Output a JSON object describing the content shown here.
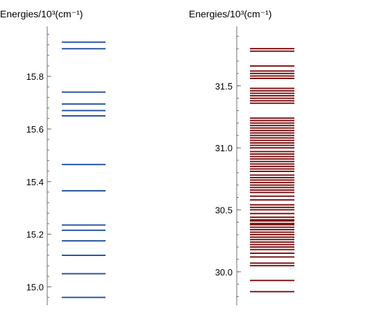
{
  "chart_data": [
    {
      "type": "energy-level-diagram",
      "title": "Energies/10³(cm⁻¹)",
      "color": "#2a57a0",
      "ylim": [
        14.93,
        15.99
      ],
      "major_ticks": [
        15.0,
        15.2,
        15.4,
        15.6,
        15.8
      ],
      "tick_labels": [
        "15.0",
        "15.2",
        "15.4",
        "15.6",
        "15.8"
      ],
      "minor_step": 0.04,
      "levels": [
        14.96,
        15.05,
        15.12,
        15.175,
        15.215,
        15.235,
        15.365,
        15.465,
        15.65,
        15.67,
        15.695,
        15.74,
        15.905,
        15.93
      ]
    },
    {
      "type": "energy-level-diagram",
      "title": "Energies/10³(cm⁻¹)",
      "color": "#7e1616",
      "ylim": [
        29.73,
        31.98
      ],
      "major_ticks": [
        30.0,
        30.5,
        31.0,
        31.5
      ],
      "tick_labels": [
        "30.0",
        "30.5",
        "31.0",
        "31.5"
      ],
      "minor_step": 0.1,
      "levels": [
        29.84,
        29.93,
        30.05,
        30.07,
        30.12,
        30.15,
        30.18,
        30.2,
        30.22,
        30.24,
        30.26,
        30.28,
        30.3,
        30.32,
        30.34,
        30.36,
        30.38,
        30.39,
        30.41,
        30.42,
        30.44,
        30.47,
        30.5,
        30.52,
        30.54,
        30.58,
        30.61,
        30.64,
        30.66,
        30.68,
        30.7,
        30.72,
        30.74,
        30.76,
        30.78,
        30.81,
        30.83,
        30.85,
        30.87,
        30.89,
        30.91,
        30.93,
        30.95,
        30.97,
        31.0,
        31.02,
        31.04,
        31.06,
        31.08,
        31.1,
        31.12,
        31.14,
        31.16,
        31.18,
        31.2,
        31.22,
        31.24,
        31.36,
        31.38,
        31.4,
        31.42,
        31.44,
        31.46,
        31.48,
        31.56,
        31.58,
        31.6,
        31.62,
        31.66,
        31.78,
        31.8
      ]
    }
  ]
}
